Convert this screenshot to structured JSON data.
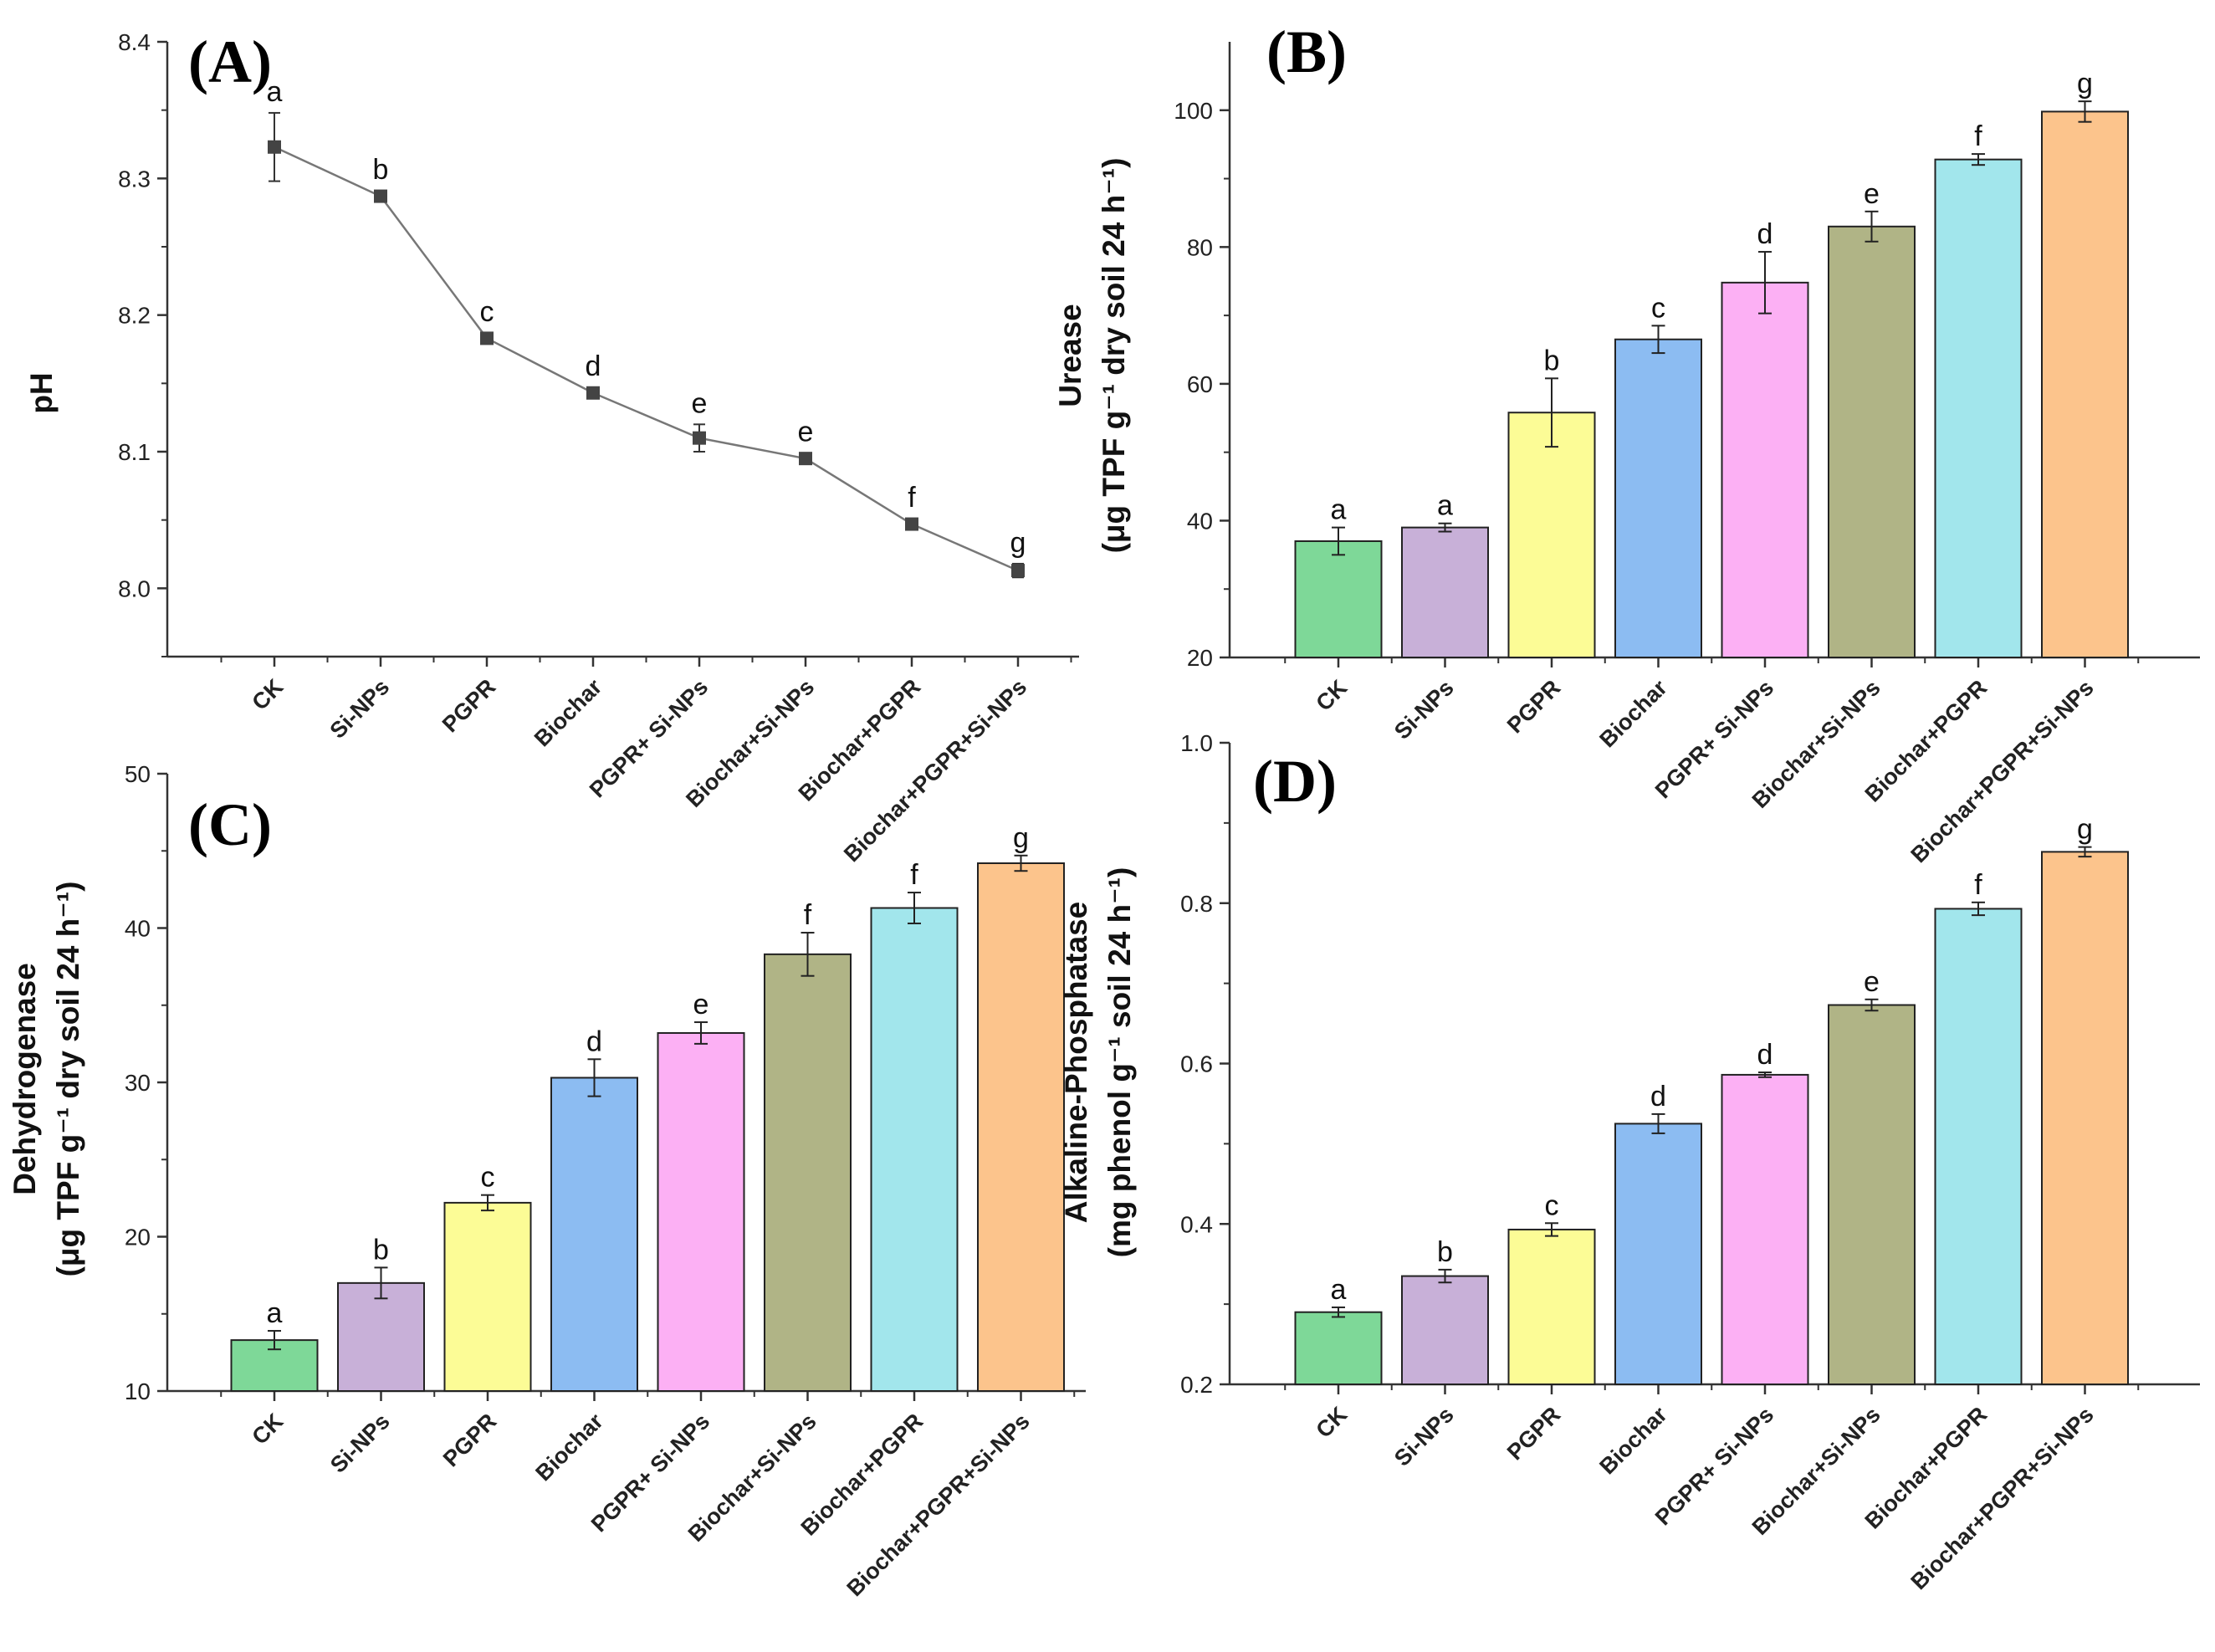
{
  "chart_data": [
    {
      "id": "A",
      "panel_label": "(A)",
      "type": "line",
      "categories": [
        "CK",
        "Si-NPs",
        "PGPR",
        "Biochar",
        "PGPR+ Si-NPs",
        "Biochar+Si-NPs",
        "Biochar+PGPR",
        "Biochar+PGPR+Si-NPs"
      ],
      "values": [
        8.323,
        8.287,
        8.183,
        8.143,
        8.11,
        8.095,
        8.047,
        8.013
      ],
      "errors": [
        0.025,
        0.004,
        0.004,
        0.004,
        0.01,
        0.004,
        0.004,
        0.005
      ],
      "letters": [
        "a",
        "b",
        "c",
        "d",
        "e",
        "e",
        "f",
        "g"
      ],
      "ylabel_lines": [
        "pH"
      ],
      "ylim": [
        7.95,
        8.4
      ],
      "yticks": [
        8.0,
        8.1,
        8.2,
        8.3,
        8.4
      ],
      "ytick_labels": [
        "8.0",
        "8.1",
        "8.2",
        "8.3",
        "8.4"
      ],
      "line_color": "#777777",
      "marker_color": "#444444"
    },
    {
      "id": "B",
      "panel_label": "(B)",
      "type": "bar",
      "categories": [
        "CK",
        "Si-NPs",
        "PGPR",
        "Biochar",
        "PGPR+ Si-NPs",
        "Biochar+Si-NPs",
        "Biochar+PGPR",
        "Biochar+PGPR+Si-NPs"
      ],
      "values": [
        37.0,
        39.0,
        55.8,
        66.5,
        74.8,
        83.0,
        92.8,
        99.8
      ],
      "errors": [
        2.0,
        0.6,
        5.0,
        2.0,
        4.5,
        2.2,
        0.8,
        1.5
      ],
      "letters": [
        "a",
        "a",
        "b",
        "c",
        "d",
        "e",
        "f",
        "g"
      ],
      "ylabel_lines": [
        "Urease",
        "(μg TPF g⁻¹ dry soil 24 h⁻¹)"
      ],
      "ylim": [
        20,
        110
      ],
      "yticks": [
        20,
        40,
        60,
        80,
        100
      ],
      "ytick_labels": [
        "20",
        "40",
        "60",
        "80",
        "100"
      ]
    },
    {
      "id": "C",
      "panel_label": "(C)",
      "type": "bar",
      "categories": [
        "CK",
        "Si-NPs",
        "PGPR",
        "Biochar",
        "PGPR+ Si-NPs",
        "Biochar+Si-NPs",
        "Biochar+PGPR",
        "Biochar+PGPR+Si-NPs"
      ],
      "values": [
        13.3,
        17.0,
        22.2,
        30.3,
        33.2,
        38.3,
        41.3,
        44.2
      ],
      "errors": [
        0.6,
        1.0,
        0.5,
        1.2,
        0.7,
        1.4,
        1.0,
        0.5
      ],
      "letters": [
        "a",
        "b",
        "c",
        "d",
        "e",
        "f",
        "f",
        "g"
      ],
      "ylabel_lines": [
        "Dehydrogenase",
        "(μg TPF g⁻¹ dry soil 24 h⁻¹)"
      ],
      "ylim": [
        10,
        50
      ],
      "yticks": [
        10,
        20,
        30,
        40,
        50
      ],
      "ytick_labels": [
        "10",
        "20",
        "30",
        "40",
        "50"
      ]
    },
    {
      "id": "D",
      "panel_label": "(D)",
      "type": "bar",
      "categories": [
        "CK",
        "Si-NPs",
        "PGPR",
        "Biochar",
        "PGPR+ Si-NPs",
        "Biochar+Si-NPs",
        "Biochar+PGPR",
        "Biochar+PGPR+Si-NPs"
      ],
      "values": [
        0.29,
        0.335,
        0.393,
        0.525,
        0.586,
        0.673,
        0.793,
        0.864
      ],
      "errors": [
        0.006,
        0.008,
        0.008,
        0.012,
        0.003,
        0.007,
        0.008,
        0.006
      ],
      "letters": [
        "a",
        "b",
        "c",
        "d",
        "d",
        "e",
        "f",
        "g"
      ],
      "ylabel_lines": [
        "Alkaline-Phosphatase",
        "(mg phenol g⁻¹ soil 24 h⁻¹)"
      ],
      "ylim": [
        0.2,
        1.0
      ],
      "yticks": [
        0.2,
        0.4,
        0.6,
        0.8,
        1.0
      ],
      "ytick_labels": [
        "0.2",
        "0.4",
        "0.6",
        "0.8",
        "1.0"
      ]
    }
  ],
  "bar_colors": [
    "#7ed898",
    "#c8b0d8",
    "#fcfc96",
    "#8cbcf2",
    "#fcb0f4",
    "#b0b486",
    "#a2e6ec",
    "#fcc48c"
  ]
}
